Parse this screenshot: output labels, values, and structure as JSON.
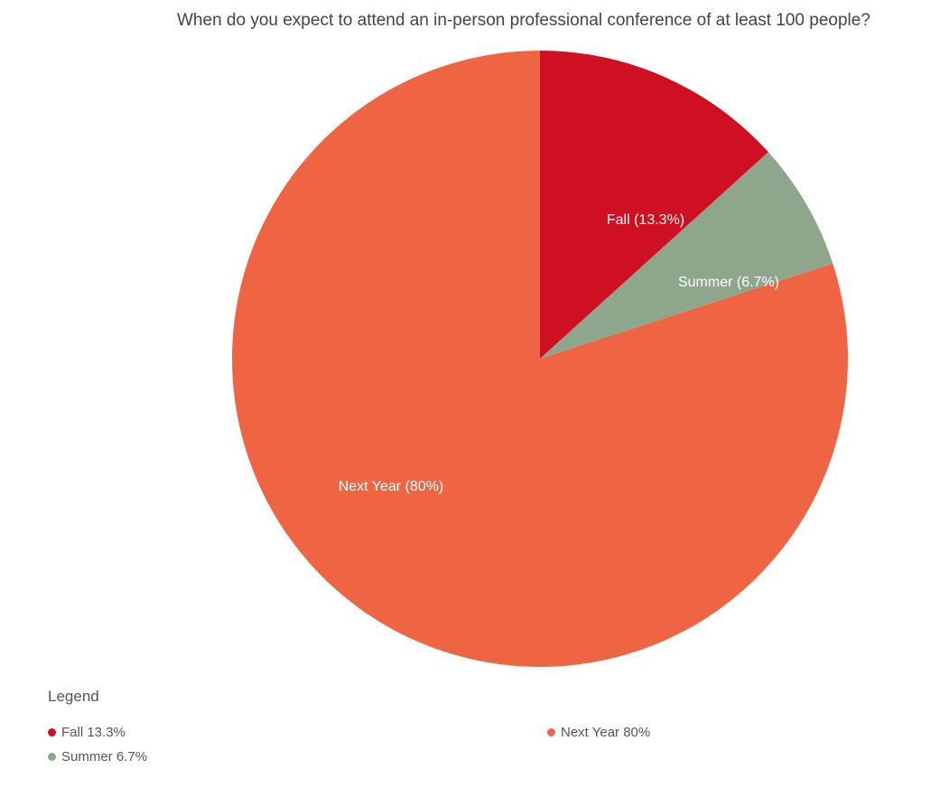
{
  "chart_data": {
    "type": "pie",
    "title": "When do you expect to attend an in-person professional conference of at least 100 people?",
    "slices": [
      {
        "name": "Fall",
        "value": 13.3,
        "label": "Fall (13.3%)",
        "color": "#cf1022"
      },
      {
        "name": "Summer",
        "value": 6.7,
        "label": "Summer (6.7%)",
        "color": "#8ea78c"
      },
      {
        "name": "Next Year",
        "value": 80,
        "label": "Next Year (80%)",
        "color": "#ef6544"
      }
    ],
    "legend": {
      "title": "Legend",
      "placement": "bottom-left",
      "items": [
        {
          "text": "Fall 13.3%",
          "color": "#cf1022"
        },
        {
          "text": "Next Year 80%",
          "color": "#ef6544"
        },
        {
          "text": "Summer 6.7%",
          "color": "#8ea78c"
        }
      ]
    }
  }
}
